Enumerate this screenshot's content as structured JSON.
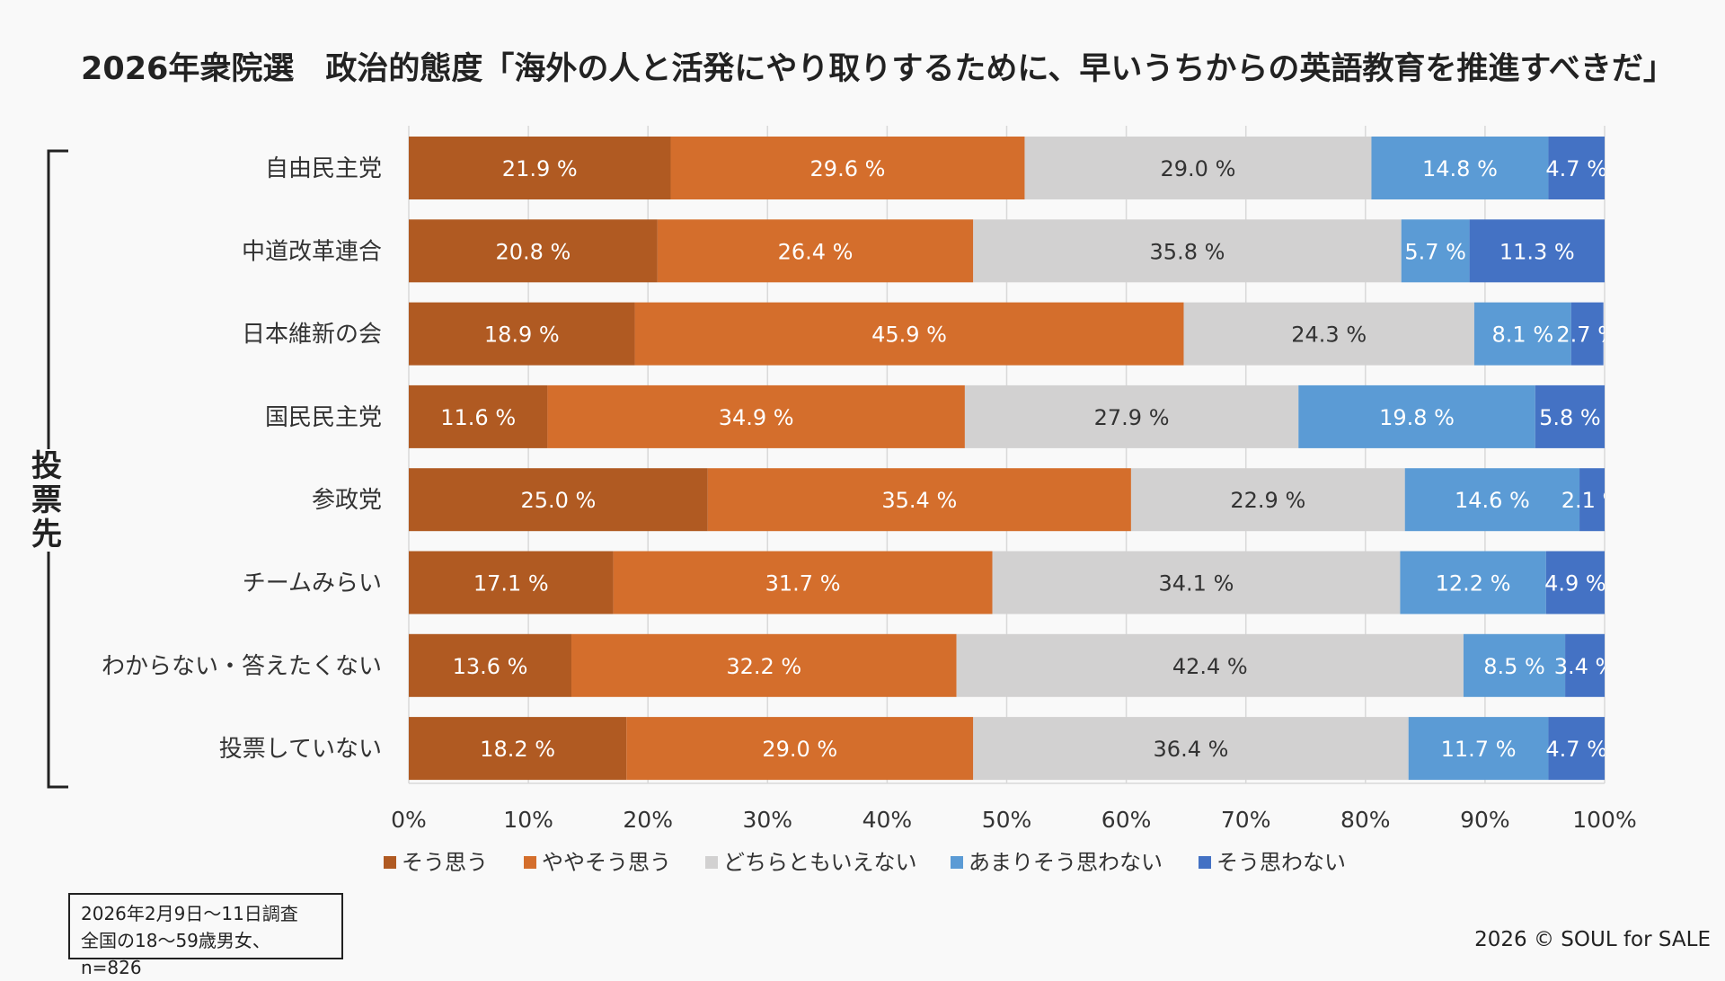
{
  "chart_data": {
    "type": "bar",
    "orientation": "horizontal-stacked-100",
    "title": "2026年衆院選　政治的態度「海外の人と活発にやり取りするために、早いうちからの英語教育を推進すべきだ」",
    "group_label": "投票先",
    "categories": [
      "自由民主党",
      "中道改革連合",
      "日本維新の会",
      "国民民主党",
      "参政党",
      "チームみらい",
      "わからない・答えたくない",
      "投票していない"
    ],
    "series": [
      {
        "name": "そう思う",
        "color": "#b05a22",
        "label_color": "#ffffff",
        "values": [
          21.9,
          20.8,
          18.9,
          11.6,
          25.0,
          17.1,
          13.6,
          18.2
        ]
      },
      {
        "name": "ややそう思う",
        "color": "#d46e2c",
        "label_color": "#ffffff",
        "values": [
          29.6,
          26.4,
          45.9,
          34.9,
          35.4,
          31.7,
          32.2,
          29.0
        ]
      },
      {
        "name": "どちらともいえない",
        "color": "#d2d1d1",
        "label_color": "#333333",
        "values": [
          29.0,
          35.8,
          24.3,
          27.9,
          22.9,
          34.1,
          42.4,
          36.4
        ]
      },
      {
        "name": "あまりそう思わない",
        "color": "#5b9bd5",
        "label_color": "#ffffff",
        "values": [
          14.8,
          5.7,
          8.1,
          19.8,
          14.6,
          12.2,
          8.5,
          11.7
        ]
      },
      {
        "name": "そう思わない",
        "color": "#4472c4",
        "label_color": "#ffffff",
        "values": [
          4.7,
          11.3,
          2.7,
          5.8,
          2.1,
          4.9,
          3.4,
          4.7
        ]
      }
    ],
    "value_suffix": " %",
    "xlim": [
      0,
      100
    ],
    "x_ticks": [
      "0%",
      "10%",
      "20%",
      "30%",
      "40%",
      "50%",
      "60%",
      "70%",
      "80%",
      "90%",
      "100%"
    ],
    "legend_position": "bottom",
    "grid": true
  },
  "notes": {
    "survey_line1": "2026年2月9日〜11日調査",
    "survey_line2": "全国の18〜59歳男女、n=826",
    "copyright": "2026 © SOUL for SALE"
  }
}
